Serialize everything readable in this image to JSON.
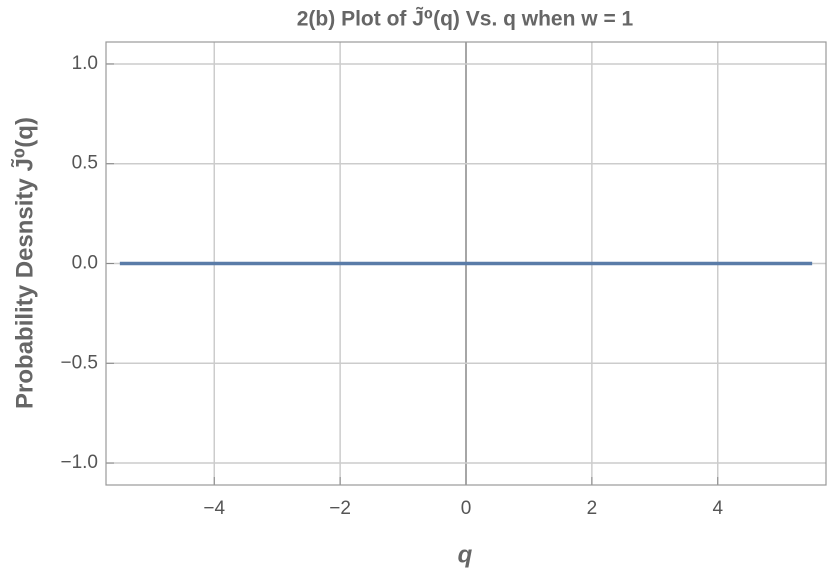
{
  "chart_data": {
    "type": "line",
    "title": "2(b) Plot of J̃⁰(q) Vs. q when w = 1",
    "x_label": "q",
    "y_label": "Probability  Desnsity J̃⁰(q)",
    "x": [
      -5.5,
      5.5
    ],
    "series": [
      {
        "color": "#5a7ca8",
        "values": [
          0,
          0
        ]
      }
    ],
    "xlim": [
      -5.72,
      5.72
    ],
    "ylim": [
      -1.11,
      1.11
    ],
    "xticks": [
      {
        "value": -4,
        "label": "−4"
      },
      {
        "value": -2,
        "label": "−2"
      },
      0,
      2,
      4
    ],
    "yticks": [
      {
        "value": -1,
        "label": "−1.0"
      },
      {
        "value": -0.5,
        "label": "−0.5"
      },
      {
        "value": 0,
        "label": "0.0"
      },
      0.5,
      {
        "value": 1,
        "label": "1.0"
      }
    ],
    "grid": true
  }
}
